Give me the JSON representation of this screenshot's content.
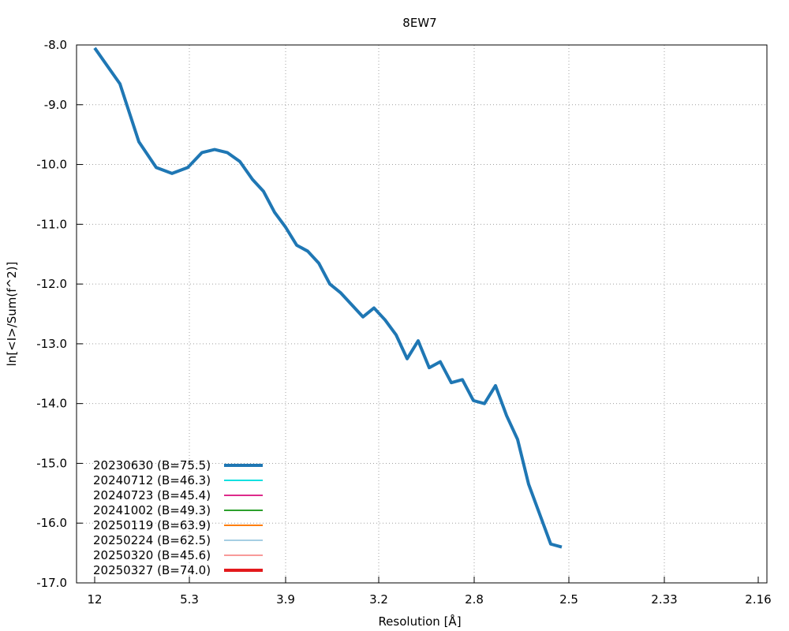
{
  "chart_data": {
    "type": "line",
    "title": "8EW7",
    "xlabel": "Resolution [Å]",
    "ylabel": "ln[<I>/Sum(f^2)]",
    "ylim": [
      -17.0,
      -8.0
    ],
    "x_scale": "1/d^2",
    "x_tick_labels": [
      "12",
      "5.3",
      "3.9",
      "3.2",
      "2.8",
      "2.5",
      "2.33",
      "2.16"
    ],
    "y_ticks": [
      -8.0,
      -9.0,
      -10.0,
      -11.0,
      -12.0,
      -13.0,
      -14.0,
      -15.0,
      -16.0,
      -17.0
    ],
    "y_tick_labels": [
      "-8.0",
      "-9.0",
      "-10.0",
      "-11.0",
      "-12.0",
      "-13.0",
      "-14.0",
      "-15.0",
      "-16.0",
      "-17.0"
    ],
    "grid": true,
    "legend_position": "bottom-left",
    "series": [
      {
        "name": "20230630 (B=75.5)",
        "color": "#1f77b4",
        "width": 4,
        "x": [
          12.0,
          9.28,
          7.84,
          6.92,
          6.26,
          5.76,
          5.37,
          5.05,
          4.78,
          4.55,
          4.35,
          4.18,
          4.03,
          3.89,
          3.76,
          3.65,
          3.55,
          3.45,
          3.36,
          3.28,
          3.21,
          3.14,
          3.08,
          3.02,
          2.96,
          2.91,
          2.86,
          2.81,
          2.77,
          2.73,
          2.69,
          2.65,
          2.61,
          2.58,
          2.55,
          2.52,
          2.49,
          2.46,
          2.43
        ],
        "y": [
          -8.05,
          -8.65,
          -9.62,
          -10.05,
          -10.15,
          -10.05,
          -9.8,
          -9.75,
          -9.8,
          -9.95,
          -10.25,
          -10.45,
          -10.8,
          -11.05,
          -11.35,
          -11.45,
          -11.65,
          -12.0,
          -12.15,
          -12.35,
          -12.55,
          -12.4,
          -12.6,
          -12.85,
          -13.25,
          -12.95,
          -13.4,
          -13.3,
          -13.65,
          -13.6,
          -13.95,
          -14.0,
          -13.7,
          -14.2,
          -14.6,
          -15.35,
          -15.85,
          -16.35,
          -16.4
        ],
        "visible_count": 39
      }
    ]
  },
  "legend": {
    "entries": [
      {
        "label": "20230630 (B=75.5)",
        "color": "#1f77b4",
        "width": 4
      },
      {
        "label": "20240712 (B=46.3)",
        "color": "#12e0e0",
        "width": 2
      },
      {
        "label": "20240723 (B=45.4)",
        "color": "#de2a8b",
        "width": 2
      },
      {
        "label": "20241002 (B=49.3)",
        "color": "#2ca02c",
        "width": 2
      },
      {
        "label": "20250119 (B=63.9)",
        "color": "#ff7f0e",
        "width": 2
      },
      {
        "label": "20250224 (B=62.5)",
        "color": "#a6cee3",
        "width": 2
      },
      {
        "label": "20250320 (B=45.6)",
        "color": "#f89a99",
        "width": 2
      },
      {
        "label": "20250327 (B=74.0)",
        "color": "#e31a1c",
        "width": 4
      }
    ]
  }
}
